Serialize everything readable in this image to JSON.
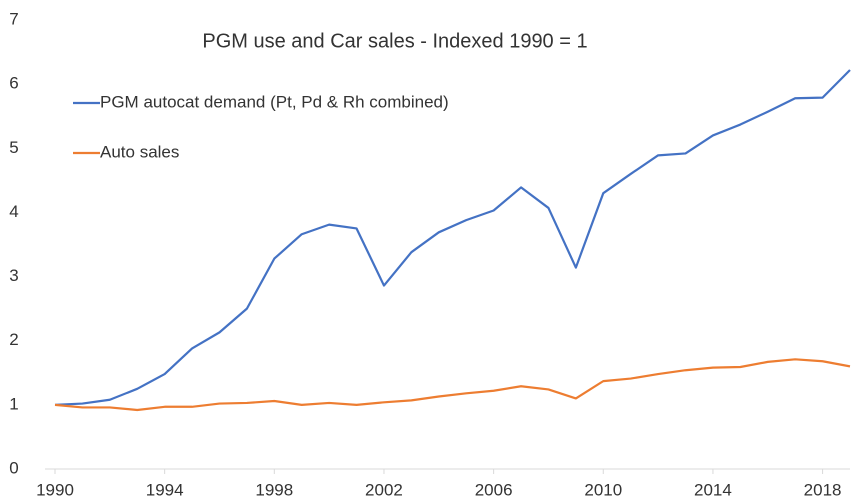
{
  "chart_data": {
    "type": "line",
    "title": "PGM use and Car sales - Indexed 1990 = 1",
    "x": [
      1990,
      1991,
      1992,
      1993,
      1994,
      1995,
      1996,
      1997,
      1998,
      1999,
      2000,
      2001,
      2002,
      2003,
      2004,
      2005,
      2006,
      2007,
      2008,
      2009,
      2010,
      2011,
      2012,
      2013,
      2014,
      2015,
      2016,
      2017,
      2018,
      2019
    ],
    "series": [
      {
        "name": "PGM autocat demand (Pt, Pd & Rh combined)",
        "color": "#4472c4",
        "values": [
          1.0,
          1.02,
          1.08,
          1.25,
          1.48,
          1.88,
          2.13,
          2.5,
          3.28,
          3.66,
          3.81,
          3.75,
          2.86,
          3.38,
          3.69,
          3.88,
          4.03,
          4.39,
          4.07,
          3.14,
          4.3,
          4.6,
          4.89,
          4.92,
          5.2,
          5.37,
          5.57,
          5.78,
          5.79,
          6.22
        ]
      },
      {
        "name": "Auto sales",
        "color": "#ed7d31",
        "values": [
          1.0,
          0.96,
          0.96,
          0.92,
          0.97,
          0.97,
          1.02,
          1.03,
          1.06,
          1.0,
          1.03,
          1.0,
          1.04,
          1.07,
          1.13,
          1.18,
          1.22,
          1.29,
          1.24,
          1.1,
          1.37,
          1.41,
          1.48,
          1.54,
          1.58,
          1.59,
          1.67,
          1.71,
          1.68,
          1.6
        ]
      }
    ],
    "xlim": [
      1990,
      2019
    ],
    "xticks": [
      1990,
      1994,
      1998,
      2002,
      2006,
      2010,
      2014,
      2018
    ],
    "ylim": [
      0,
      7
    ],
    "yticks": [
      0,
      1,
      2,
      3,
      4,
      5,
      6,
      7
    ],
    "grid": false
  }
}
